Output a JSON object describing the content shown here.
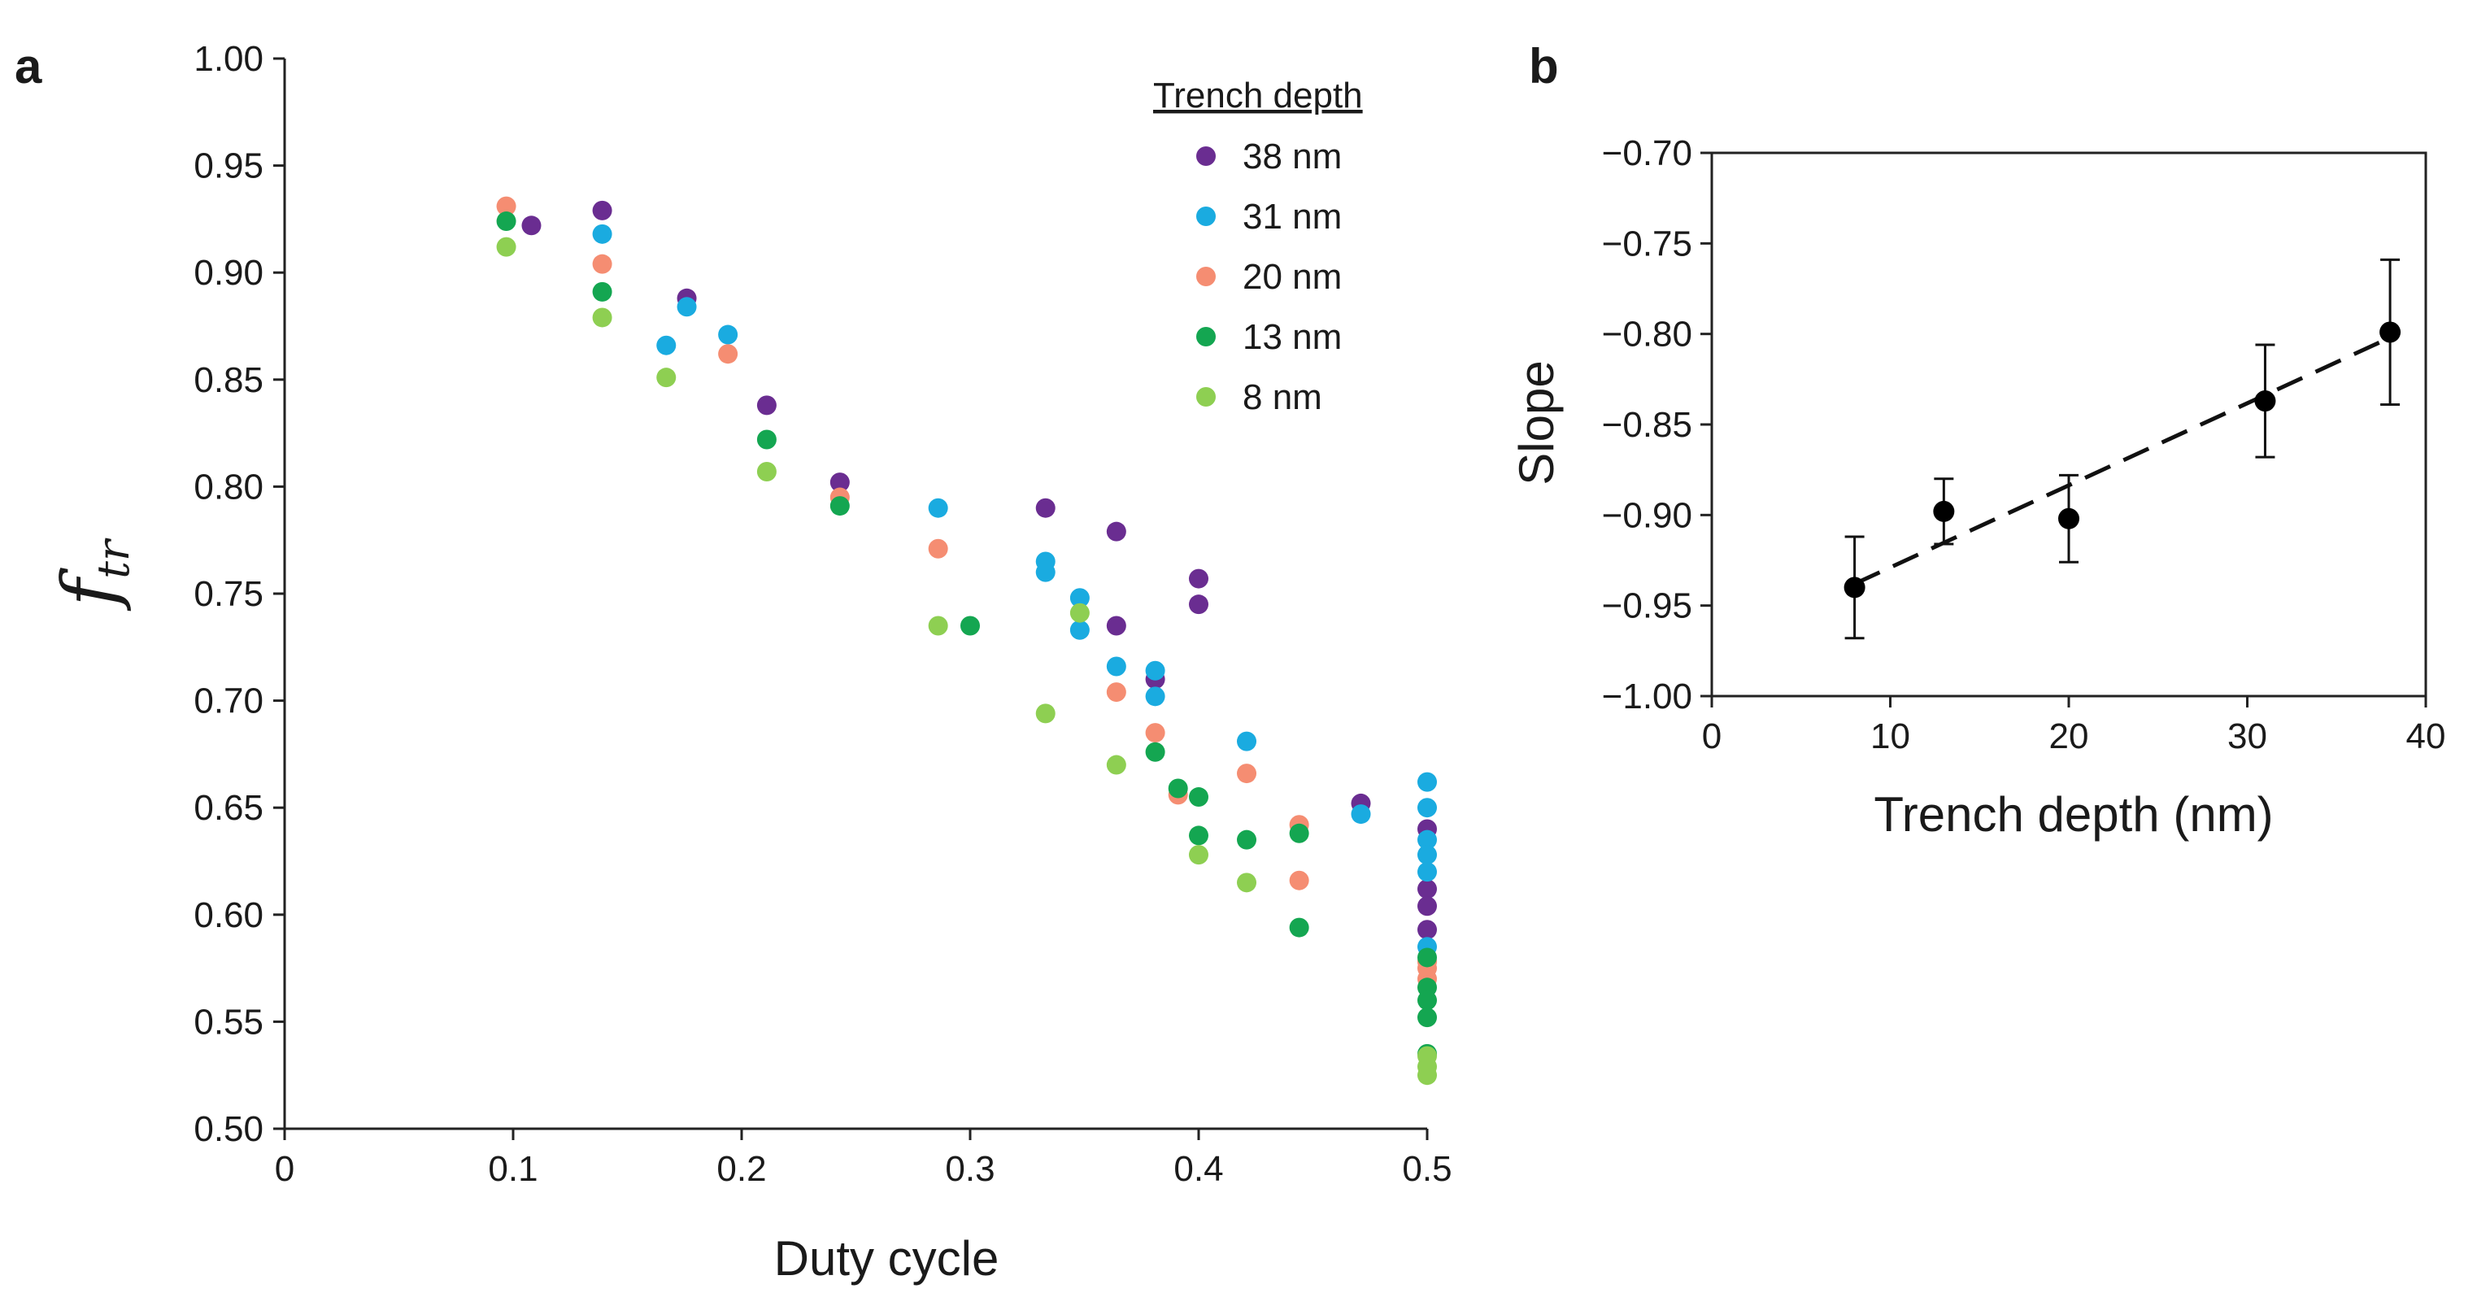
{
  "figure": {
    "panel_a_letter": "a",
    "panel_b_letter": "b"
  },
  "chart_data": [
    {
      "type": "scatter",
      "panel": "a",
      "xlabel": "Duty cycle",
      "ylabel_main": "f",
      "ylabel_sub": "tr",
      "xlim": [
        0,
        0.5
      ],
      "ylim": [
        0.5,
        1.0
      ],
      "xticks": [
        0,
        0.1,
        0.2,
        0.3,
        0.4,
        0.5
      ],
      "xtick_labels": [
        "0",
        "0.1",
        "0.2",
        "0.3",
        "0.4",
        "0.5"
      ],
      "yticks": [
        0.5,
        0.55,
        0.6,
        0.65,
        0.7,
        0.75,
        0.8,
        0.85,
        0.9,
        0.95,
        1.0
      ],
      "ytick_labels": [
        "0.50",
        "0.55",
        "0.60",
        "0.65",
        "0.70",
        "0.75",
        "0.80",
        "0.85",
        "0.90",
        "0.95",
        "1.00"
      ],
      "legend_title": "Trench depth",
      "legend_position": "top-right",
      "series": [
        {
          "name": "38 nm",
          "color": "#6a2d91",
          "points": [
            [
              0.108,
              0.922
            ],
            [
              0.139,
              0.929
            ],
            [
              0.176,
              0.888
            ],
            [
              0.211,
              0.838
            ],
            [
              0.243,
              0.802
            ],
            [
              0.333,
              0.79
            ],
            [
              0.364,
              0.779
            ],
            [
              0.364,
              0.735
            ],
            [
              0.381,
              0.71
            ],
            [
              0.4,
              0.757
            ],
            [
              0.4,
              0.745
            ],
            [
              0.471,
              0.652
            ],
            [
              0.5,
              0.64
            ],
            [
              0.5,
              0.612
            ],
            [
              0.5,
              0.604
            ],
            [
              0.5,
              0.593
            ]
          ]
        },
        {
          "name": "31 nm",
          "color": "#1aabe0",
          "points": [
            [
              0.139,
              0.918
            ],
            [
              0.167,
              0.866
            ],
            [
              0.176,
              0.884
            ],
            [
              0.194,
              0.871
            ],
            [
              0.286,
              0.79
            ],
            [
              0.333,
              0.765
            ],
            [
              0.333,
              0.76
            ],
            [
              0.348,
              0.748
            ],
            [
              0.348,
              0.733
            ],
            [
              0.364,
              0.716
            ],
            [
              0.381,
              0.714
            ],
            [
              0.381,
              0.702
            ],
            [
              0.421,
              0.681
            ],
            [
              0.471,
              0.647
            ],
            [
              0.5,
              0.662
            ],
            [
              0.5,
              0.65
            ],
            [
              0.5,
              0.635
            ],
            [
              0.5,
              0.628
            ],
            [
              0.5,
              0.62
            ],
            [
              0.5,
              0.585
            ]
          ]
        },
        {
          "name": "20 nm",
          "color": "#f58d72",
          "points": [
            [
              0.097,
              0.931
            ],
            [
              0.139,
              0.904
            ],
            [
              0.194,
              0.862
            ],
            [
              0.243,
              0.795
            ],
            [
              0.286,
              0.771
            ],
            [
              0.364,
              0.704
            ],
            [
              0.381,
              0.685
            ],
            [
              0.391,
              0.656
            ],
            [
              0.421,
              0.666
            ],
            [
              0.444,
              0.642
            ],
            [
              0.444,
              0.616
            ],
            [
              0.5,
              0.578
            ],
            [
              0.5,
              0.575
            ],
            [
              0.5,
              0.57
            ]
          ]
        },
        {
          "name": "13 nm",
          "color": "#14a651",
          "points": [
            [
              0.097,
              0.924
            ],
            [
              0.139,
              0.891
            ],
            [
              0.211,
              0.822
            ],
            [
              0.243,
              0.791
            ],
            [
              0.3,
              0.735
            ],
            [
              0.381,
              0.676
            ],
            [
              0.391,
              0.659
            ],
            [
              0.4,
              0.655
            ],
            [
              0.4,
              0.637
            ],
            [
              0.421,
              0.635
            ],
            [
              0.444,
              0.638
            ],
            [
              0.444,
              0.594
            ],
            [
              0.5,
              0.58
            ],
            [
              0.5,
              0.566
            ],
            [
              0.5,
              0.56
            ],
            [
              0.5,
              0.552
            ],
            [
              0.5,
              0.535
            ]
          ]
        },
        {
          "name": "8 nm",
          "color": "#8ecf52",
          "points": [
            [
              0.097,
              0.912
            ],
            [
              0.139,
              0.879
            ],
            [
              0.167,
              0.851
            ],
            [
              0.211,
              0.807
            ],
            [
              0.286,
              0.735
            ],
            [
              0.333,
              0.694
            ],
            [
              0.348,
              0.741
            ],
            [
              0.364,
              0.67
            ],
            [
              0.4,
              0.628
            ],
            [
              0.421,
              0.615
            ],
            [
              0.5,
              0.534
            ],
            [
              0.5,
              0.529
            ],
            [
              0.5,
              0.525
            ]
          ]
        }
      ]
    },
    {
      "type": "scatter",
      "panel": "b",
      "xlabel": "Trench depth (nm)",
      "ylabel": "Slope",
      "xlim": [
        0,
        40
      ],
      "ylim": [
        -1.0,
        -0.7
      ],
      "xticks": [
        0,
        10,
        20,
        30,
        40
      ],
      "xtick_labels": [
        "0",
        "10",
        "20",
        "30",
        "40"
      ],
      "yticks": [
        -1.0,
        -0.95,
        -0.9,
        -0.85,
        -0.8,
        -0.75,
        -0.7
      ],
      "ytick_labels": [
        "−1.00",
        "−0.95",
        "−0.90",
        "−0.85",
        "−0.80",
        "−0.75",
        "−0.70"
      ],
      "points": [
        {
          "x": 8,
          "y": -0.94,
          "err": 0.028
        },
        {
          "x": 13,
          "y": -0.898,
          "err": 0.018
        },
        {
          "x": 20,
          "y": -0.902,
          "err": 0.024
        },
        {
          "x": 31,
          "y": -0.837,
          "err": 0.031
        },
        {
          "x": 38,
          "y": -0.799,
          "err": 0.04
        }
      ],
      "fit": {
        "style": "dashed",
        "x": [
          8,
          38
        ],
        "y": [
          -0.938,
          -0.802
        ]
      },
      "marker_color": "#000000"
    }
  ]
}
